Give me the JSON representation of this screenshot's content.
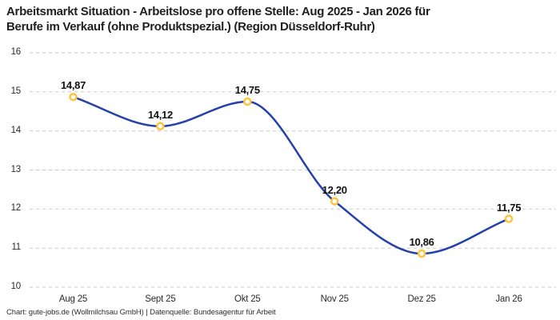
{
  "header": {
    "title_lines": [
      "Arbeitsmarkt Situation - Arbeitslose pro offene Stelle: Aug 2025 - Jan 2026 für",
      "Berufe im Verkauf (ohne Produktspezial.) (Region Düsseldorf-Ruhr)"
    ]
  },
  "chart_data": {
    "type": "line",
    "title": "Arbeitsmarkt Situation - Arbeitslose pro offene Stelle: Aug 2025 - Jan 2026 für Berufe im Verkauf (ohne Produktspezial.) (Region Düsseldorf-Ruhr)",
    "categories": [
      "Aug 25",
      "Sept 25",
      "Okt 25",
      "Nov 25",
      "Dez 25",
      "Jan 26"
    ],
    "values": [
      14.87,
      14.12,
      14.75,
      12.2,
      10.86,
      11.75
    ],
    "value_labels": [
      "14,87",
      "14,12",
      "14,75",
      "12,20",
      "10,86",
      "11,75"
    ],
    "xlabel": "",
    "ylabel": "",
    "ylim": [
      10,
      16
    ],
    "yticks": [
      10,
      11,
      12,
      13,
      14,
      15,
      16
    ],
    "grid": "horizontal-dashed",
    "legend": "none",
    "curve": "monotone",
    "colors": {
      "line": "#2540ab",
      "marker_ring": "#ffc33d",
      "marker_fill": "#ffffff",
      "gridline": "#c9c9c9",
      "axis_text": "#2b2b2b",
      "value_text": "#111111"
    }
  },
  "footer": {
    "credit": "Chart: gute-jobs.de (Wollmilchsau GmbH) | Datenquelle: Bundesagentur für Arbeit"
  }
}
